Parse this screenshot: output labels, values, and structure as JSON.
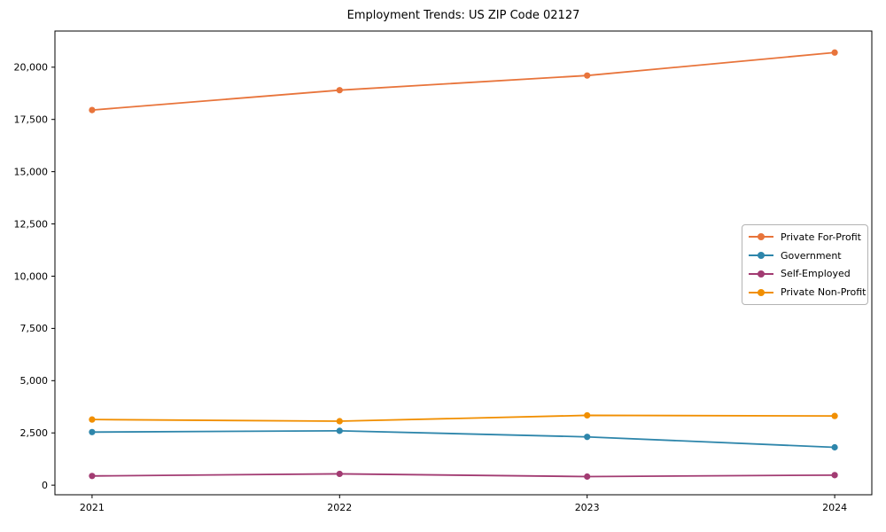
{
  "chart_data": {
    "type": "line",
    "title": "Employment Trends: US ZIP Code 02127",
    "xlabel": "",
    "ylabel": "",
    "categories": [
      "2021",
      "2022",
      "2023",
      "2024"
    ],
    "series": [
      {
        "name": "Private For-Profit",
        "color": "#E8743B",
        "values": [
          17950,
          18900,
          19600,
          20700
        ]
      },
      {
        "name": "Government",
        "color": "#2E86AB",
        "values": [
          2540,
          2600,
          2310,
          1810
        ]
      },
      {
        "name": "Self-Employed",
        "color": "#A23B72",
        "values": [
          440,
          540,
          410,
          480
        ]
      },
      {
        "name": "Private Non-Profit",
        "color": "#F18F01",
        "values": [
          3140,
          3060,
          3340,
          3310
        ]
      }
    ],
    "yticks": [
      0,
      2500,
      5000,
      7500,
      10000,
      12500,
      15000,
      17500,
      20000
    ],
    "ylim": [
      -460,
      21730
    ],
    "grid": false,
    "legend_position": "center right",
    "frame": true,
    "axis_color": "#000000",
    "tick_label_color": "#000000"
  }
}
